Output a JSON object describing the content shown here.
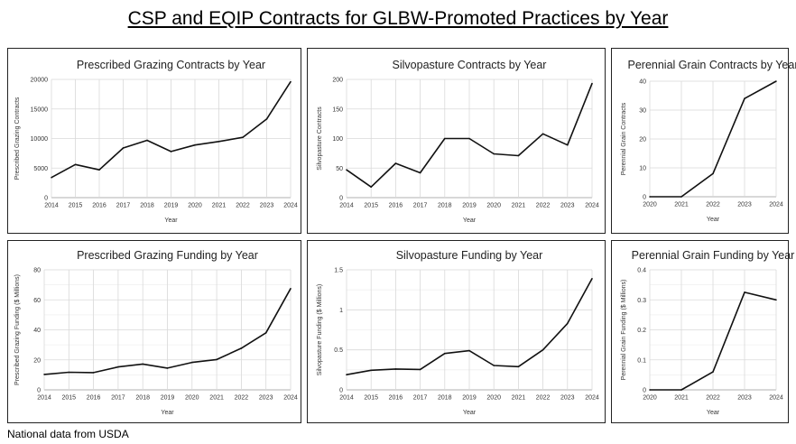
{
  "title": "CSP and EQIP Contracts for GLBW-Promoted Practices by Year",
  "footer": "National data from USDA",
  "colors": {
    "line": "#111111",
    "grid": "#d9d9d9",
    "minor_grid": "#efefef",
    "border": "#222222"
  },
  "chart_data": [
    {
      "type": "line",
      "title": "Prescribed Grazing Contracts by Year",
      "xlabel": "Year",
      "ylabel": "Prescribed Grazing Contracts",
      "x": [
        "2014",
        "2015",
        "2016",
        "2017",
        "2018",
        "2019",
        "2020",
        "2021",
        "2022",
        "2023",
        "2024"
      ],
      "values": [
        3400,
        5600,
        4700,
        8400,
        9700,
        7800,
        8900,
        9500,
        10200,
        13300,
        19600
      ],
      "ylim": [
        0,
        20000
      ],
      "yticks": [
        "0",
        "5000",
        "10000",
        "15000",
        "20000"
      ],
      "grid": true
    },
    {
      "type": "line",
      "title": "Silvopasture Contracts by Year",
      "xlabel": "Year",
      "ylabel": "Silvopasture Contracts",
      "x": [
        "2014",
        "2015",
        "2016",
        "2017",
        "2018",
        "2019",
        "2020",
        "2021",
        "2022",
        "2023",
        "2024"
      ],
      "values": [
        47,
        18,
        58,
        42,
        100,
        100,
        74,
        71,
        108,
        89,
        193
      ],
      "ylim": [
        0,
        200
      ],
      "yticks": [
        "0",
        "50",
        "100",
        "150",
        "200"
      ],
      "grid": true
    },
    {
      "type": "line",
      "title": "Perennial Grain Contracts by Year",
      "xlabel": "Year",
      "ylabel": "Perennial Grain Contracts",
      "x": [
        "2020",
        "2021",
        "2022",
        "2023",
        "2024"
      ],
      "values": [
        0,
        0,
        8,
        34,
        40
      ],
      "ylim": [
        0,
        40
      ],
      "yticks": [
        "0",
        "10",
        "20",
        "30",
        "40"
      ],
      "grid": true
    },
    {
      "type": "line",
      "title": "Prescribed Grazing Funding by Year",
      "xlabel": "Year",
      "ylabel": "Prescribed Grazing Funding ($ Millions)",
      "x": [
        "2014",
        "2015",
        "2016",
        "2017",
        "2018",
        "2019",
        "2020",
        "2021",
        "2022",
        "2023",
        "2024"
      ],
      "values": [
        10.3,
        11.7,
        11.5,
        15.3,
        17.2,
        14.5,
        18.3,
        20.2,
        27.7,
        38,
        67.5
      ],
      "ylim": [
        0,
        80
      ],
      "yticks": [
        "0",
        "20",
        "40",
        "60",
        "80"
      ],
      "grid": true
    },
    {
      "type": "line",
      "title": "Silvopasture Funding by Year",
      "xlabel": "Year",
      "ylabel": "Silvopasture Funding ($ Millions)",
      "x": [
        "2014",
        "2015",
        "2016",
        "2017",
        "2018",
        "2019",
        "2020",
        "2021",
        "2022",
        "2023",
        "2024"
      ],
      "values": [
        0.19,
        0.245,
        0.26,
        0.255,
        0.455,
        0.49,
        0.305,
        0.29,
        0.5,
        0.83,
        1.39
      ],
      "ylim": [
        0,
        1.5
      ],
      "yticks": [
        "0",
        "0.5",
        "1",
        "1.5"
      ],
      "grid": true
    },
    {
      "type": "line",
      "title": "Perennial Grain Funding by Year",
      "xlabel": "Year",
      "ylabel": "Perennial Grain Funding ($ Millions)",
      "x": [
        "2020",
        "2021",
        "2022",
        "2023",
        "2024"
      ],
      "values": [
        0,
        0,
        0.06,
        0.325,
        0.3
      ],
      "ylim": [
        0,
        0.4
      ],
      "yticks": [
        "0",
        "0.1",
        "0.2",
        "0.3",
        "0.4"
      ],
      "grid": true
    }
  ]
}
